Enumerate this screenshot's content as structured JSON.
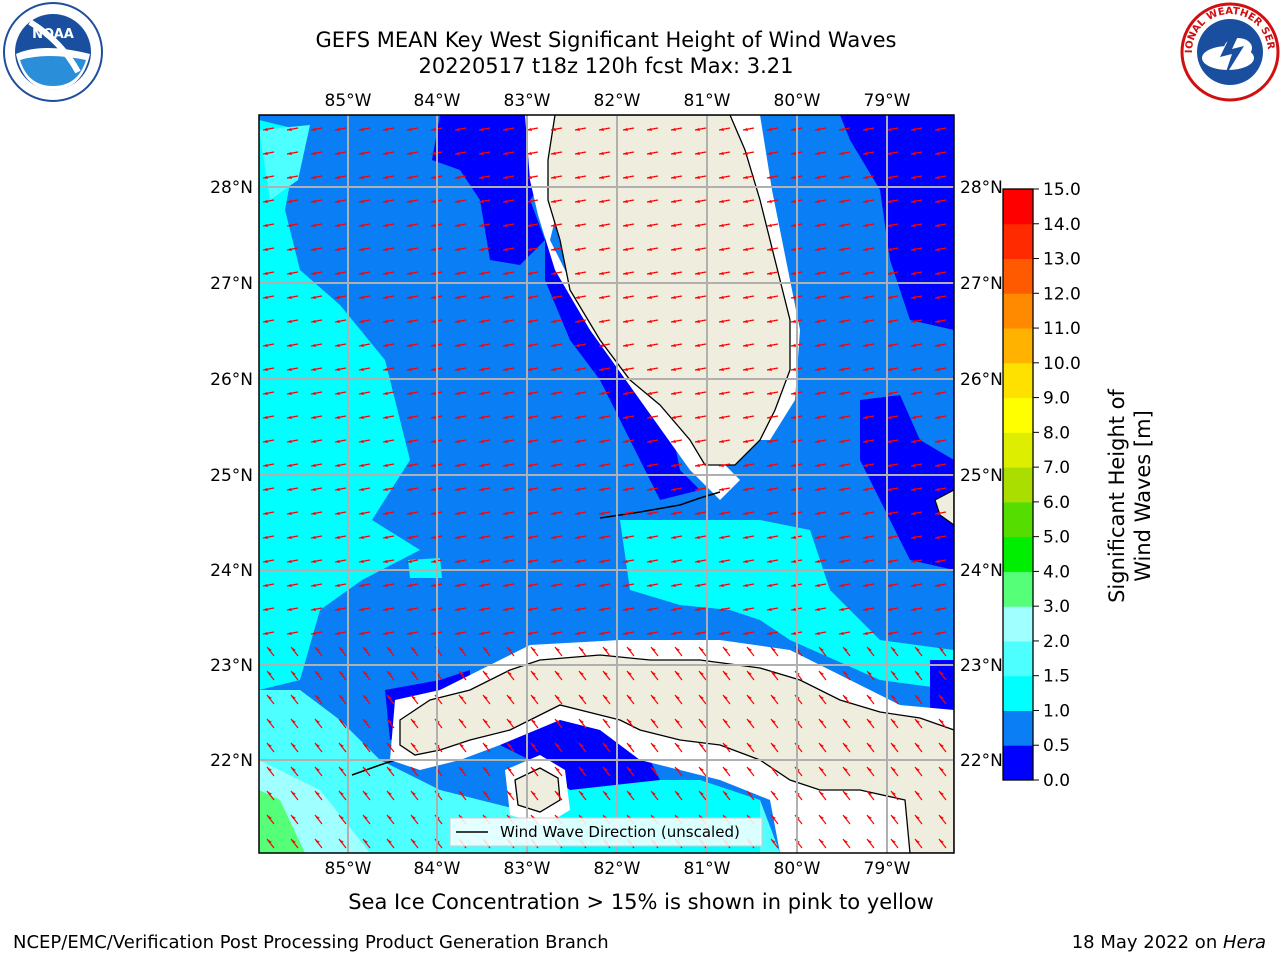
{
  "header": {
    "title_line1": "GEFS MEAN Key West Significant Height of Wind Waves",
    "title_line2": "20220517 t18z 120h fcst   Max: 3.21"
  },
  "logos": {
    "left": {
      "name": "noaa-logo",
      "text": "NOAA"
    },
    "right": {
      "name": "nws-logo",
      "text": "NATIONAL WEATHER SERVICE"
    }
  },
  "map": {
    "lon_labels": [
      "85°W",
      "84°W",
      "83°W",
      "82°W",
      "81°W",
      "80°W",
      "79°W"
    ],
    "lat_labels": [
      "28°N",
      "27°N",
      "26°N",
      "25°N",
      "24°N",
      "23°N",
      "22°N"
    ],
    "legend": "Wind Wave Direction (unscaled)",
    "colors": {
      "land": "#efedde",
      "coast": "#000000",
      "arrow": "#ff0000",
      "grid": "#b0b0b0"
    }
  },
  "colorbar": {
    "label": "Significant Height of Wind Waves [m]",
    "ticks": [
      "0.0",
      "0.5",
      "1.0",
      "1.5",
      "2.0",
      "3.0",
      "4.0",
      "5.0",
      "6.0",
      "7.0",
      "8.0",
      "9.0",
      "10.0",
      "11.0",
      "12.0",
      "13.0",
      "14.0",
      "15.0"
    ],
    "colors": [
      "#0000ff",
      "#0a7ef4",
      "#00ffff",
      "#4dffff",
      "#a0ffff",
      "#55ff77",
      "#00ee00",
      "#55dd00",
      "#aadd00",
      "#ddee00",
      "#ffff00",
      "#ffe100",
      "#ffb300",
      "#ff8a00",
      "#ff5a00",
      "#ff2a00",
      "#ff0000"
    ]
  },
  "caption": "Sea Ice Concentration > 15% is shown in pink to yellow",
  "footer": {
    "left": "NCEP/EMC/Verification Post Processing Product Generation Branch",
    "right_date": "18 May 2022 on ",
    "right_host": "Hera"
  }
}
